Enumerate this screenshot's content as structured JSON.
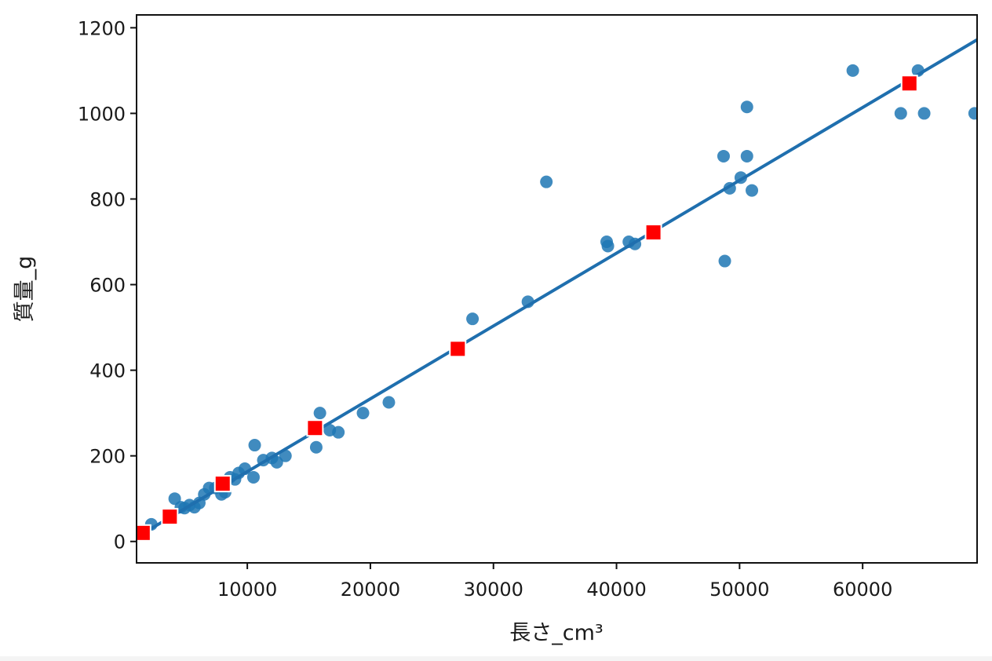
{
  "chart_data": {
    "type": "scatter",
    "title": "",
    "xlabel": "長さ_cm³",
    "ylabel": "質量_g",
    "xlim": [
      1000,
      69300
    ],
    "ylim": [
      -50,
      1230
    ],
    "xticks": [
      10000,
      20000,
      30000,
      40000,
      50000,
      60000
    ],
    "yticks": [
      0,
      200,
      400,
      600,
      800,
      1000,
      1200
    ],
    "grid": false,
    "legend": "none",
    "colors": {
      "points": "#1f77b4",
      "line": "#1f6fae",
      "predicted": "#ff0000"
    },
    "series": [
      {
        "type": "scatter",
        "points": [
          [
            2200,
            40
          ],
          [
            4100,
            100
          ],
          [
            4600,
            80
          ],
          [
            4900,
            78
          ],
          [
            5300,
            85
          ],
          [
            5700,
            80
          ],
          [
            6100,
            90
          ],
          [
            6500,
            110
          ],
          [
            6900,
            125
          ],
          [
            7400,
            125
          ],
          [
            7900,
            110
          ],
          [
            8200,
            115
          ],
          [
            8600,
            150
          ],
          [
            9000,
            145
          ],
          [
            9300,
            160
          ],
          [
            9800,
            170
          ],
          [
            10500,
            150
          ],
          [
            10600,
            225
          ],
          [
            11300,
            190
          ],
          [
            12000,
            195
          ],
          [
            12400,
            185
          ],
          [
            13100,
            200
          ],
          [
            15600,
            220
          ],
          [
            15900,
            300
          ],
          [
            16700,
            260
          ],
          [
            17400,
            255
          ],
          [
            19400,
            300
          ],
          [
            21500,
            325
          ],
          [
            28300,
            520
          ],
          [
            32800,
            560
          ],
          [
            34300,
            840
          ],
          [
            39200,
            700
          ],
          [
            39300,
            690
          ],
          [
            41000,
            700
          ],
          [
            41500,
            695
          ],
          [
            48700,
            900
          ],
          [
            48800,
            655
          ],
          [
            49200,
            825
          ],
          [
            50100,
            850
          ],
          [
            50600,
            900
          ],
          [
            50600,
            1015
          ],
          [
            51000,
            820
          ],
          [
            59200,
            1100
          ],
          [
            63100,
            1000
          ],
          [
            64500,
            1100
          ],
          [
            65000,
            1000
          ],
          [
            69100,
            1000
          ]
        ]
      },
      {
        "type": "line",
        "points": [
          [
            1000,
            10
          ],
          [
            69300,
            1172
          ]
        ]
      },
      {
        "type": "scatter",
        "marker": "square",
        "points": [
          [
            1500,
            20
          ],
          [
            3700,
            58
          ],
          [
            8000,
            135
          ],
          [
            15500,
            265
          ],
          [
            27100,
            450
          ],
          [
            43000,
            722
          ],
          [
            63800,
            1070
          ]
        ]
      }
    ]
  }
}
